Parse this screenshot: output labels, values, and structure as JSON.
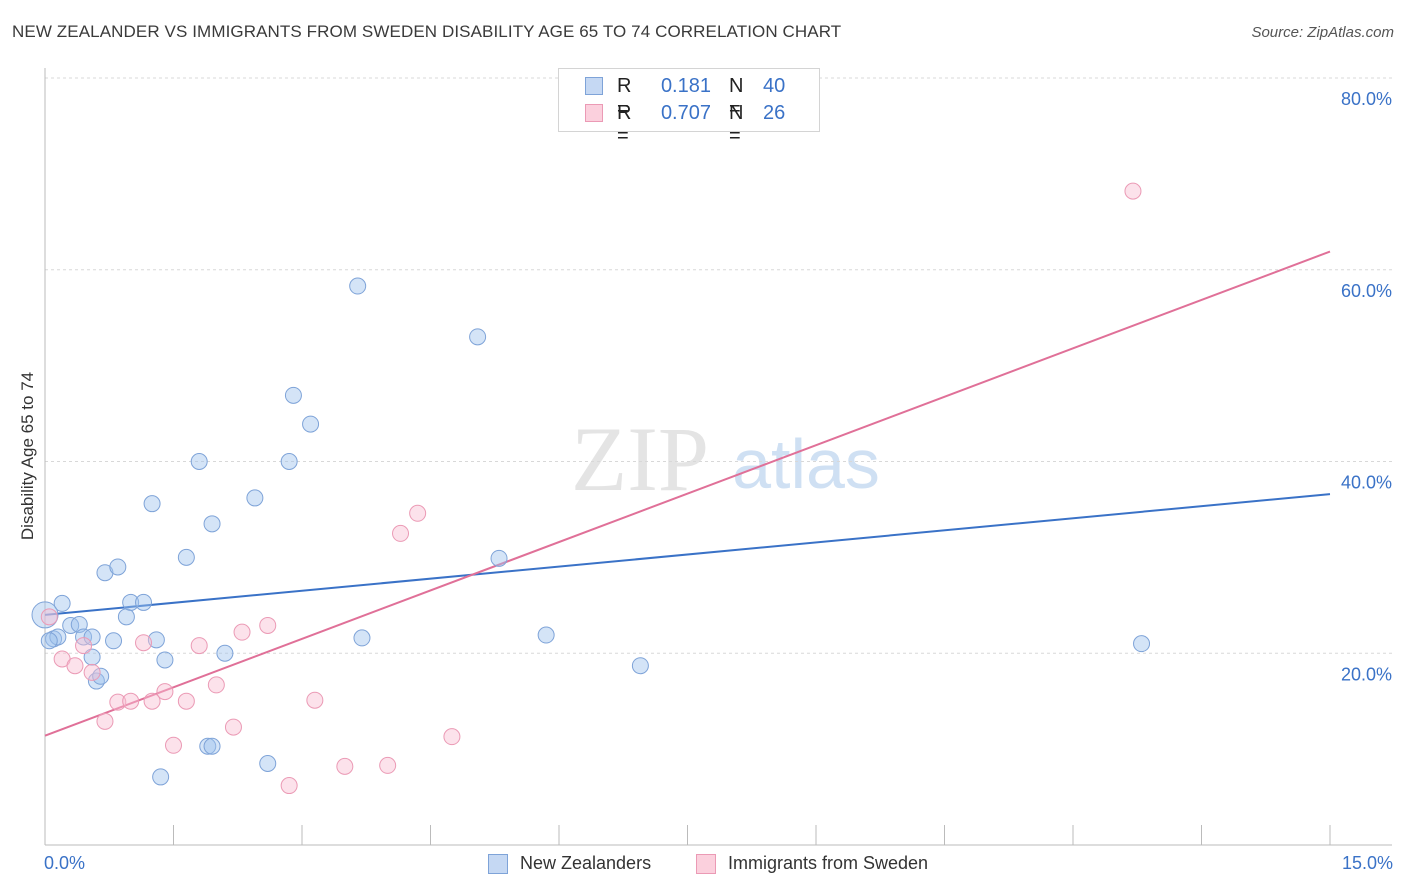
{
  "title": "NEW ZEALANDER VS IMMIGRANTS FROM SWEDEN DISABILITY AGE 65 TO 74 CORRELATION CHART",
  "source": "Source: ZipAtlas.com",
  "watermark": {
    "zip": "ZIP",
    "atlas": "atlas"
  },
  "legend": {
    "r_label": "R =",
    "n_label": "N =",
    "rows": [
      {
        "name": "New Zealanders",
        "r": "0.181",
        "n": "40"
      },
      {
        "name": "Immigrants from Sweden",
        "r": "0.707",
        "n": "26"
      }
    ]
  },
  "chart_data": {
    "type": "scatter",
    "title": "NEW ZEALANDER VS IMMIGRANTS FROM SWEDEN DISABILITY AGE 65 TO 74 CORRELATION CHART",
    "xlabel": "",
    "ylabel": "Disability Age 65 to 74",
    "xlim": [
      0,
      15
    ],
    "ylim": [
      0,
      80
    ],
    "x_tick_labels": [
      "0.0%",
      "15.0%"
    ],
    "y_ticks": [
      20,
      40,
      60,
      80
    ],
    "y_tick_labels": [
      "20.0%",
      "40.0%",
      "60.0%",
      "80.0%"
    ],
    "grid": true,
    "colors": {
      "New Zealanders": "#3a72c7",
      "Immigrants from Sweden": "#e07098"
    },
    "series": [
      {
        "name": "New Zealanders",
        "color": "#3a72c7",
        "trend": {
          "x": [
            0,
            15
          ],
          "y": [
            24.0,
            36.6
          ]
        },
        "points": [
          [
            0.0,
            24.0
          ],
          [
            0.1,
            21.5
          ],
          [
            0.15,
            21.7
          ],
          [
            0.2,
            25.2
          ],
          [
            0.3,
            22.9
          ],
          [
            0.4,
            23.0
          ],
          [
            0.45,
            21.7
          ],
          [
            0.55,
            21.7
          ],
          [
            0.55,
            19.6
          ],
          [
            0.6,
            17.1
          ],
          [
            0.65,
            17.6
          ],
          [
            0.7,
            28.4
          ],
          [
            0.8,
            21.3
          ],
          [
            0.85,
            29.0
          ],
          [
            0.95,
            23.8
          ],
          [
            1.0,
            25.3
          ],
          [
            1.15,
            25.3
          ],
          [
            1.25,
            35.6
          ],
          [
            1.3,
            21.4
          ],
          [
            1.35,
            7.1
          ],
          [
            1.4,
            19.3
          ],
          [
            1.65,
            30.0
          ],
          [
            1.8,
            40.0
          ],
          [
            1.9,
            10.3
          ],
          [
            1.95,
            33.5
          ],
          [
            1.95,
            10.3
          ],
          [
            2.1,
            20.0
          ],
          [
            2.45,
            36.2
          ],
          [
            2.6,
            8.5
          ],
          [
            2.85,
            40.0
          ],
          [
            2.9,
            46.9
          ],
          [
            3.1,
            43.9
          ],
          [
            3.65,
            58.3
          ],
          [
            3.7,
            21.6
          ],
          [
            5.05,
            53.0
          ],
          [
            5.3,
            29.9
          ],
          [
            5.85,
            21.9
          ],
          [
            6.95,
            18.7
          ],
          [
            12.8,
            21.0
          ],
          [
            0.05,
            21.3
          ]
        ]
      },
      {
        "name": "Immigrants from Sweden",
        "color": "#e07098",
        "trend": {
          "x": [
            0,
            15
          ],
          "y": [
            11.4,
            61.9
          ]
        },
        "points": [
          [
            0.05,
            23.8
          ],
          [
            0.2,
            19.4
          ],
          [
            0.35,
            18.7
          ],
          [
            0.45,
            20.8
          ],
          [
            0.55,
            18.0
          ],
          [
            0.7,
            12.9
          ],
          [
            0.85,
            14.9
          ],
          [
            1.0,
            15.0
          ],
          [
            1.15,
            21.1
          ],
          [
            1.25,
            15.0
          ],
          [
            1.4,
            16.0
          ],
          [
            1.5,
            10.4
          ],
          [
            1.65,
            15.0
          ],
          [
            1.8,
            20.8
          ],
          [
            2.0,
            16.7
          ],
          [
            2.2,
            12.3
          ],
          [
            2.3,
            22.2
          ],
          [
            2.6,
            22.9
          ],
          [
            2.85,
            6.2
          ],
          [
            3.15,
            15.1
          ],
          [
            3.5,
            8.2
          ],
          [
            4.0,
            8.3
          ],
          [
            4.15,
            32.5
          ],
          [
            4.35,
            34.6
          ],
          [
            4.75,
            11.3
          ],
          [
            12.7,
            68.2
          ]
        ]
      }
    ]
  }
}
